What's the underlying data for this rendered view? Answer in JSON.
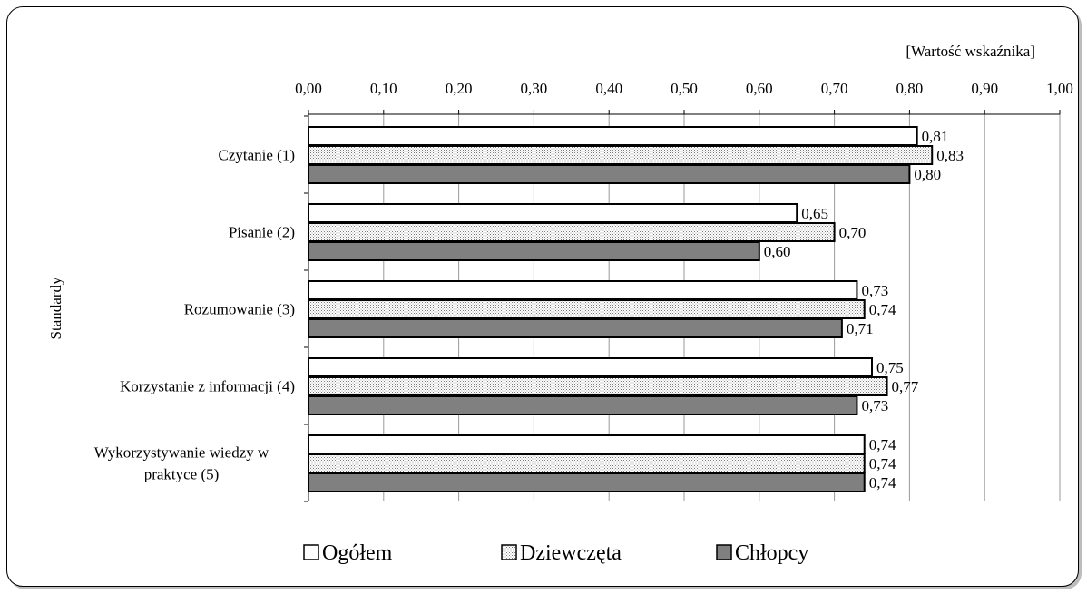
{
  "chart_data": {
    "type": "bar",
    "orientation": "horizontal",
    "unit_label": "[Wartość wskaźnika]",
    "ylabel": "Standardy",
    "xlim": [
      0,
      1
    ],
    "x_ticks": [
      "0,00",
      "0,10",
      "0,20",
      "0,30",
      "0,40",
      "0,50",
      "0,60",
      "0,70",
      "0,80",
      "0,90",
      "1,00"
    ],
    "grid": true,
    "legend_position": "bottom",
    "categories": [
      [
        "Czytanie (1)"
      ],
      [
        "Pisanie (2)"
      ],
      [
        "Rozumowanie (3)"
      ],
      [
        "Korzystanie z informacji (4)"
      ],
      [
        "Wykorzystywanie wiedzy w",
        "praktyce (5)"
      ]
    ],
    "series": [
      {
        "name": "Ogółem",
        "values": [
          0.81,
          0.65,
          0.73,
          0.75,
          0.74
        ],
        "labels": [
          "0,81",
          "0,65",
          "0,73",
          "0,75",
          "0,74"
        ],
        "fill": "#ffffff"
      },
      {
        "name": "Dziewczęta",
        "values": [
          0.83,
          0.7,
          0.74,
          0.77,
          0.74
        ],
        "labels": [
          "0,83",
          "0,70",
          "0,74",
          "0,77",
          "0,74"
        ],
        "fill": "dotted"
      },
      {
        "name": "Chłopcy",
        "values": [
          0.8,
          0.6,
          0.71,
          0.73,
          0.74
        ],
        "labels": [
          "0,80",
          "0,60",
          "0,71",
          "0,73",
          "0,74"
        ],
        "fill": "#808080"
      }
    ]
  }
}
